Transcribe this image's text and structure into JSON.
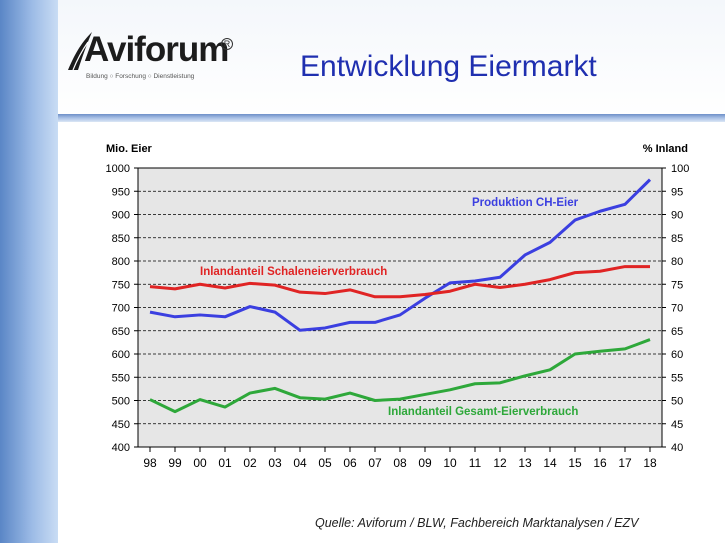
{
  "header": {
    "logo_text": "Aviforum",
    "logo_tagline": "Bildung ○ Forschung ○ Dienstleistung",
    "title": "Entwicklung Eiermarkt"
  },
  "source": "Quelle: Aviforum / BLW, Fachbereich Marktanalysen  / EZV",
  "colors": {
    "title": "#1f2fb0",
    "production": "#3b3fe0",
    "shell_share": "#e02424",
    "total_share": "#2ea83a",
    "plot_bg": "#e6e6e6"
  },
  "chart_data": {
    "type": "line",
    "categories": [
      "98",
      "99",
      "00",
      "01",
      "02",
      "03",
      "04",
      "05",
      "06",
      "07",
      "08",
      "09",
      "10",
      "11",
      "12",
      "13",
      "14",
      "15",
      "16",
      "17",
      "18"
    ],
    "y_left": {
      "label": "Mio. Eier",
      "range": [
        400,
        1000
      ],
      "ticks": [
        400,
        450,
        500,
        550,
        600,
        650,
        700,
        750,
        800,
        850,
        900,
        950,
        1000
      ]
    },
    "y_right": {
      "label": "% Inland",
      "range": [
        40,
        100
      ],
      "ticks": [
        40,
        45,
        50,
        55,
        60,
        65,
        70,
        75,
        80,
        85,
        90,
        95,
        100
      ]
    },
    "grid": true,
    "series": [
      {
        "name": "Produktion CH-Eier",
        "axis": "left",
        "color": "#3b3fe0",
        "values": [
          690,
          680,
          684,
          680,
          702,
          690,
          651,
          656,
          668,
          668,
          684,
          720,
          753,
          757,
          765,
          813,
          840,
          888,
          907,
          922,
          975
        ]
      },
      {
        "name": "Inlandanteil Schaleneierverbrauch",
        "axis": "right",
        "color": "#e02424",
        "values": [
          74.5,
          74.0,
          75.0,
          74.2,
          75.2,
          74.8,
          73.3,
          73.0,
          73.8,
          72.3,
          72.3,
          72.8,
          73.5,
          75.0,
          74.3,
          75.0,
          76.0,
          77.5,
          77.8,
          78.8,
          78.8
        ]
      },
      {
        "name": "Inlandanteil Gesamt-Eierverbrauch",
        "axis": "right",
        "color": "#2ea83a",
        "values": [
          50.2,
          47.6,
          50.2,
          48.6,
          51.6,
          52.6,
          50.6,
          50.3,
          51.6,
          50.0,
          50.3,
          51.3,
          52.3,
          53.6,
          53.8,
          55.3,
          56.6,
          60.0,
          60.6,
          61.1,
          63.1
        ]
      }
    ]
  }
}
